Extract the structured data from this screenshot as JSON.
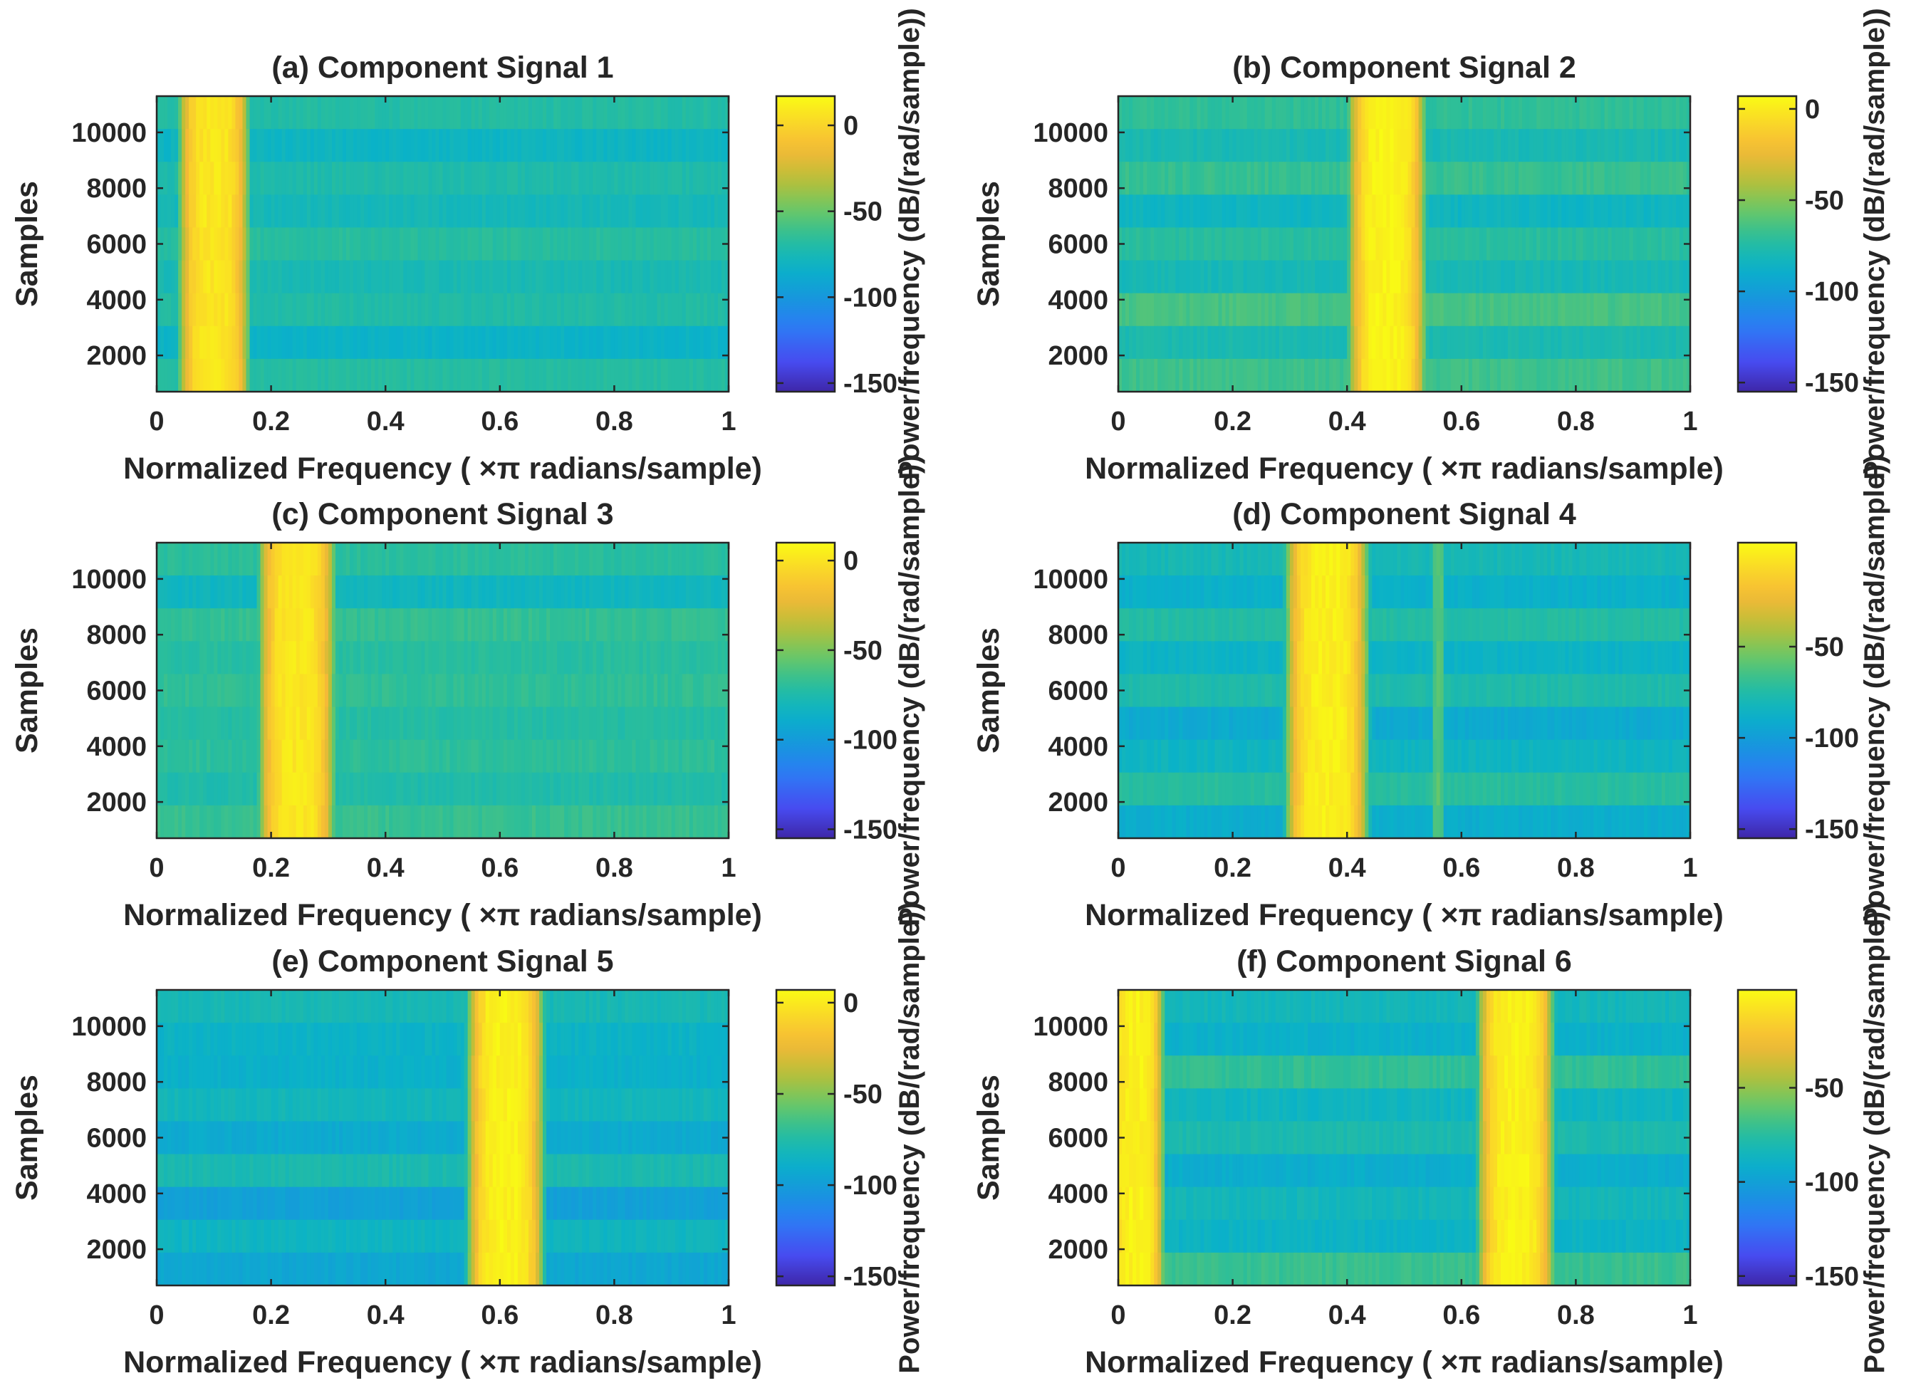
{
  "figure": {
    "x_label": "Normalized Frequency ( ×π radians/sample)",
    "y_label": "Samples",
    "colorbar_label": "Power/frequency (dB/(rad/sample))"
  },
  "chart_data": [
    {
      "type": "heatmap",
      "title": "(a) Component Signal 1",
      "xlabel": "Normalized Frequency ( ×π radians/sample)",
      "ylabel": "Samples",
      "xlim": [
        0,
        1
      ],
      "ylim": [
        700,
        11300
      ],
      "x_ticks": [
        0,
        0.2,
        0.4,
        0.6,
        0.8,
        1
      ],
      "x_tick_labels": [
        "0",
        "0.2",
        "0.4",
        "0.6",
        "0.8",
        "1"
      ],
      "y_ticks": [
        2000,
        4000,
        6000,
        8000,
        10000
      ],
      "y_tick_labels": [
        "2000",
        "4000",
        "6000",
        "8000",
        "10000"
      ],
      "colorbar": {
        "label": "Power/frequency (dB/(rad/sample))",
        "clim": [
          -155,
          17
        ],
        "ticks": [
          0,
          -50,
          -100,
          -150
        ],
        "tick_labels": [
          "0",
          "-50",
          "-100",
          "-150"
        ]
      },
      "bands": [
        {
          "center": 0.1,
          "width": 0.055,
          "peak_db": 8
        }
      ],
      "background_db": -72,
      "row_bands_db": [
        -68,
        -82,
        -70,
        -74,
        -67,
        -76,
        -71,
        -80,
        -69
      ]
    },
    {
      "type": "heatmap",
      "title": "(b) Component Signal 2",
      "xlabel": "Normalized Frequency ( ×π radians/sample)",
      "ylabel": "Samples",
      "xlim": [
        0,
        1
      ],
      "ylim": [
        700,
        11300
      ],
      "x_ticks": [
        0,
        0.2,
        0.4,
        0.6,
        0.8,
        1
      ],
      "x_tick_labels": [
        "0",
        "0.2",
        "0.4",
        "0.6",
        "0.8",
        "1"
      ],
      "y_ticks": [
        2000,
        4000,
        6000,
        8000,
        10000
      ],
      "y_tick_labels": [
        "2000",
        "4000",
        "6000",
        "8000",
        "10000"
      ],
      "colorbar": {
        "label": "Power/frequency (dB/(rad/sample))",
        "clim": [
          -155,
          7
        ],
        "ticks": [
          0,
          -50,
          -100,
          -150
        ],
        "tick_labels": [
          "0",
          "-50",
          "-100",
          "-150"
        ]
      },
      "bands": [
        {
          "center": 0.47,
          "width": 0.06,
          "peak_db": 4
        }
      ],
      "background_db": -70,
      "row_bands_db": [
        -66,
        -78,
        -64,
        -80,
        -72,
        -84,
        -68,
        -79,
        -70
      ]
    },
    {
      "type": "heatmap",
      "title": "(c) Component Signal 3",
      "xlabel": "Normalized Frequency ( ×π radians/sample)",
      "ylabel": "Samples",
      "xlim": [
        0,
        1
      ],
      "ylim": [
        700,
        11300
      ],
      "x_ticks": [
        0,
        0.2,
        0.4,
        0.6,
        0.8,
        1
      ],
      "x_tick_labels": [
        "0",
        "0.2",
        "0.4",
        "0.6",
        "0.8",
        "1"
      ],
      "y_ticks": [
        2000,
        4000,
        6000,
        8000,
        10000
      ],
      "y_tick_labels": [
        "2000",
        "4000",
        "6000",
        "8000",
        "10000"
      ],
      "colorbar": {
        "label": "Power/frequency (dB/(rad/sample))",
        "clim": [
          -155,
          10
        ],
        "ticks": [
          0,
          -50,
          -100,
          -150
        ],
        "tick_labels": [
          "0",
          "-50",
          "-100",
          "-150"
        ]
      },
      "bands": [
        {
          "center": 0.245,
          "width": 0.06,
          "peak_db": 2
        }
      ],
      "background_db": -70,
      "row_bands_db": [
        -66,
        -74,
        -69,
        -72,
        -68,
        -71,
        -67,
        -82,
        -70
      ]
    },
    {
      "type": "heatmap",
      "title": "(d) Component Signal 4",
      "xlabel": "Normalized Frequency ( ×π radians/sample)",
      "ylabel": "Samples",
      "xlim": [
        0,
        1
      ],
      "ylim": [
        700,
        11300
      ],
      "x_ticks": [
        0,
        0.2,
        0.4,
        0.6,
        0.8,
        1
      ],
      "x_tick_labels": [
        "0",
        "0.2",
        "0.4",
        "0.6",
        "0.8",
        "1"
      ],
      "y_ticks": [
        2000,
        4000,
        6000,
        8000,
        10000
      ],
      "y_tick_labels": [
        "2000",
        "4000",
        "6000",
        "8000",
        "10000"
      ],
      "colorbar": {
        "label": "Power/frequency (dB/(rad/sample))",
        "clim": [
          -155,
          7
        ],
        "ticks": [
          -50,
          -100,
          -150
        ],
        "tick_labels": [
          "-50",
          "-100",
          "-150"
        ]
      },
      "bands": [
        {
          "center": 0.365,
          "width": 0.065,
          "peak_db": 2
        },
        {
          "center": 0.56,
          "width": 0.012,
          "peak_db": -60
        }
      ],
      "background_db": -78,
      "row_bands_db": [
        -90,
        -72,
        -84,
        -92,
        -76,
        -86,
        -74,
        -88,
        -80
      ]
    },
    {
      "type": "heatmap",
      "title": "(e) Component Signal 5",
      "xlabel": "Normalized Frequency ( ×π radians/sample)",
      "ylabel": "Samples",
      "xlim": [
        0,
        1
      ],
      "ylim": [
        700,
        11300
      ],
      "x_ticks": [
        0,
        0.2,
        0.4,
        0.6,
        0.8,
        1
      ],
      "x_tick_labels": [
        "0",
        "0.2",
        "0.4",
        "0.6",
        "0.8",
        "1"
      ],
      "y_ticks": [
        2000,
        4000,
        6000,
        8000,
        10000
      ],
      "y_tick_labels": [
        "2000",
        "4000",
        "6000",
        "8000",
        "10000"
      ],
      "colorbar": {
        "label": "Power/frequency (dB/(rad/sample))",
        "clim": [
          -155,
          7
        ],
        "ticks": [
          0,
          -50,
          -100,
          -150
        ],
        "tick_labels": [
          "0",
          "-50",
          "-100",
          "-150"
        ]
      },
      "bands": [
        {
          "center": 0.61,
          "width": 0.06,
          "peak_db": 3
        }
      ],
      "background_db": -82,
      "row_bands_db": [
        -94,
        -84,
        -98,
        -78,
        -92,
        -82,
        -88,
        -86,
        -80
      ]
    },
    {
      "type": "heatmap",
      "title": "(f) Component Signal 6",
      "xlabel": "Normalized Frequency ( ×π radians/sample)",
      "ylabel": "Samples",
      "xlim": [
        0,
        1
      ],
      "ylim": [
        700,
        11300
      ],
      "x_ticks": [
        0,
        0.2,
        0.4,
        0.6,
        0.8,
        1
      ],
      "x_tick_labels": [
        "0",
        "0.2",
        "0.4",
        "0.6",
        "0.8",
        "1"
      ],
      "y_ticks": [
        2000,
        4000,
        6000,
        8000,
        10000
      ],
      "y_tick_labels": [
        "2000",
        "4000",
        "6000",
        "8000",
        "10000"
      ],
      "colorbar": {
        "label": "Power/frequency (dB/(rad/sample))",
        "clim": [
          -155,
          2
        ],
        "ticks": [
          -50,
          -100,
          -150
        ],
        "tick_labels": [
          "-50",
          "-100",
          "-150"
        ]
      },
      "bands": [
        {
          "center": 0.03,
          "width": 0.045,
          "peak_db": -2
        },
        {
          "center": 0.695,
          "width": 0.06,
          "peak_db": -2
        }
      ],
      "background_db": -85,
      "row_bands_db": [
        -70,
        -88,
        -84,
        -92,
        -80,
        -86,
        -72,
        -90,
        -84
      ]
    }
  ]
}
